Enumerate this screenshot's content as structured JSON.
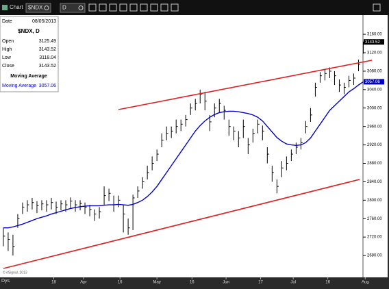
{
  "toolbar": {
    "title": "Chart",
    "symbol": "$NDX",
    "interval": "D"
  },
  "info_panel": {
    "date_label": "Date",
    "date": "08/05/2013",
    "symbol": "$NDX, D",
    "rows": [
      {
        "label": "Open",
        "value": "3125.49"
      },
      {
        "label": "High",
        "value": "3143.52"
      },
      {
        "label": "Low",
        "value": "3118.04"
      },
      {
        "label": "Close",
        "value": "3143.52"
      }
    ],
    "study": "Moving Average",
    "study_row": {
      "label": "Moving Average",
      "value": "3057.06"
    }
  },
  "chart_data": {
    "type": "ohlc",
    "x": [
      0,
      1,
      2,
      3,
      4,
      5,
      6,
      7,
      8,
      9,
      10,
      11,
      12,
      13,
      14,
      15,
      16,
      17,
      18,
      19,
      20,
      21,
      22,
      23,
      24,
      25,
      26,
      27,
      28,
      29,
      30,
      31,
      32,
      33,
      34,
      35,
      36,
      37,
      38,
      39,
      40,
      41,
      42,
      43,
      44,
      45,
      46,
      47,
      48,
      49,
      50,
      51,
      52,
      53,
      54,
      55,
      56,
      57,
      58,
      59,
      60,
      61,
      62,
      63,
      64,
      65,
      66,
      67,
      68,
      69,
      70,
      71,
      72,
      73,
      74,
      75
    ],
    "series": [
      {
        "name": "$NDX",
        "color": "#000000",
        "high": [
          2740,
          2730,
          2725,
          2770,
          2795,
          2800,
          2805,
          2798,
          2800,
          2800,
          2805,
          2797,
          2800,
          2800,
          2806,
          2800,
          2800,
          2795,
          2790,
          2780,
          2785,
          2830,
          2825,
          2810,
          2810,
          2790,
          2760,
          2812,
          2830,
          2850,
          2875,
          2895,
          2910,
          2945,
          2960,
          2960,
          2975,
          2975,
          2985,
          3010,
          3020,
          3040,
          3035,
          2985,
          3010,
          3020,
          3005,
          2975,
          2960,
          2950,
          2975,
          2935,
          2955,
          2975,
          2962,
          2915,
          2875,
          2845,
          2885,
          2895,
          2910,
          2925,
          2935,
          2972,
          3000,
          3055,
          3078,
          3085,
          3088,
          3080,
          3062,
          3055,
          3070,
          3075,
          3105,
          3143.52
        ],
        "low": [
          2700,
          2690,
          2680,
          2740,
          2770,
          2775,
          2780,
          2772,
          2778,
          2775,
          2780,
          2770,
          2778,
          2775,
          2783,
          2775,
          2778,
          2770,
          2765,
          2755,
          2760,
          2790,
          2798,
          2775,
          2785,
          2730,
          2725,
          2735,
          2805,
          2825,
          2845,
          2865,
          2885,
          2915,
          2930,
          2935,
          2945,
          2950,
          2960,
          2985,
          2995,
          3010,
          2995,
          2950,
          2980,
          2990,
          2975,
          2940,
          2930,
          2915,
          2935,
          2900,
          2925,
          2945,
          2930,
          2880,
          2840,
          2815,
          2850,
          2865,
          2885,
          2900,
          2910,
          2945,
          2970,
          3025,
          3055,
          3060,
          3065,
          3050,
          3035,
          3030,
          3045,
          3050,
          3080,
          3118.04
        ],
        "close": [
          2722,
          2715,
          2700,
          2760,
          2785,
          2790,
          2795,
          2788,
          2792,
          2790,
          2795,
          2785,
          2792,
          2790,
          2798,
          2790,
          2793,
          2785,
          2780,
          2770,
          2775,
          2810,
          2815,
          2790,
          2800,
          2770,
          2740,
          2805,
          2820,
          2840,
          2860,
          2880,
          2900,
          2930,
          2945,
          2950,
          2960,
          2965,
          2975,
          3000,
          3010,
          3030,
          3015,
          2970,
          3000,
          3010,
          2995,
          2960,
          2950,
          2935,
          2960,
          2920,
          2945,
          2965,
          2950,
          2900,
          2860,
          2830,
          2870,
          2880,
          2900,
          2915,
          2925,
          2960,
          2985,
          3045,
          3070,
          3075,
          3080,
          3070,
          3050,
          3045,
          3060,
          3065,
          3095,
          3143.52
        ]
      },
      {
        "name": "Moving Average",
        "color": "#0000cc",
        "values": [
          2740,
          2740,
          2742,
          2745,
          2748,
          2752,
          2756,
          2760,
          2763,
          2766,
          2770,
          2773,
          2776,
          2779,
          2782,
          2784,
          2786,
          2787,
          2788,
          2788,
          2788,
          2789,
          2790,
          2790,
          2791,
          2790,
          2789,
          2791,
          2795,
          2800,
          2808,
          2818,
          2830,
          2845,
          2860,
          2875,
          2890,
          2905,
          2920,
          2935,
          2950,
          2962,
          2972,
          2980,
          2986,
          2990,
          2992,
          2993,
          2993,
          2992,
          2990,
          2988,
          2985,
          2980,
          2972,
          2960,
          2948,
          2936,
          2928,
          2922,
          2920,
          2919,
          2920,
          2925,
          2935,
          2950,
          2965,
          2980,
          2995,
          3005,
          3015,
          3025,
          3035,
          3042,
          3050,
          3057.06
        ]
      }
    ],
    "xlim": [
      -0.7,
      75.5
    ],
    "xticks": [
      {
        "value": 10.5,
        "label": "18"
      },
      {
        "value": 16.7,
        "label": "Apr"
      },
      {
        "value": 24.3,
        "label": "16"
      },
      {
        "value": 32,
        "label": "May"
      },
      {
        "value": 39.3,
        "label": "16"
      },
      {
        "value": 46.4,
        "label": "Jun"
      },
      {
        "value": 53.6,
        "label": "17"
      },
      {
        "value": 60.4,
        "label": "Jul"
      },
      {
        "value": 67.6,
        "label": "16"
      },
      {
        "value": 75.4,
        "label": "Aug"
      }
    ],
    "ylim": [
      2640,
      3175
    ],
    "yticks": [
      {
        "value": 2680,
        "label": "2680.00"
      },
      {
        "value": 2720,
        "label": "2720.00"
      },
      {
        "value": 2760,
        "label": "2760.00"
      },
      {
        "value": 2800,
        "label": "2800.00"
      },
      {
        "value": 2840,
        "label": "2840.00"
      },
      {
        "value": 2880,
        "label": "2880.00"
      },
      {
        "value": 2920,
        "label": "2920.00"
      },
      {
        "value": 2960,
        "label": "2960.00"
      },
      {
        "value": 3000,
        "label": "3000.00"
      },
      {
        "value": 3040,
        "label": "3040.00"
      },
      {
        "value": 3080,
        "label": "3080.00"
      },
      {
        "value": 3120,
        "label": "3120.00"
      },
      {
        "value": 3160,
        "label": "3160.00"
      }
    ],
    "x_unit": "Dys",
    "copyright": "© eSignal, 2013"
  }
}
